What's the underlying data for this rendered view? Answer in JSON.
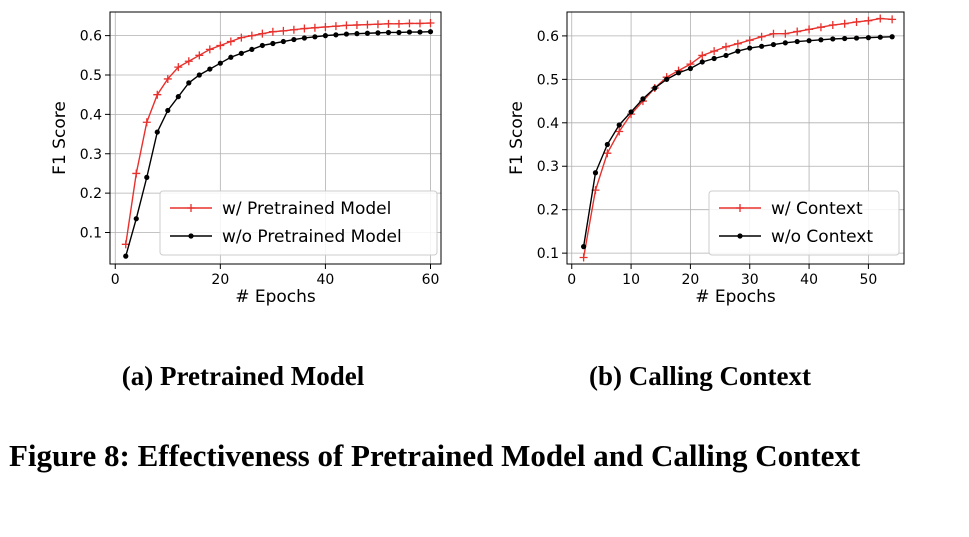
{
  "figure_caption": "Figure 8: Effectiveness of Pretrained Model and Calling Context",
  "colors": {
    "red": "#e8302c",
    "black": "#000000",
    "grid": "#b0b0b0"
  },
  "chart_data": [
    {
      "type": "line",
      "caption": "(a) Pretrained Model",
      "xlabel": "# Epochs",
      "ylabel": "F1 Score",
      "xlim": [
        -1,
        62
      ],
      "ylim": [
        0.02,
        0.66
      ],
      "xticks": [
        "0",
        "20",
        "40",
        "60"
      ],
      "xtick_values": [
        0,
        20,
        40,
        60
      ],
      "yticks": [
        "0.1",
        "0.2",
        "0.3",
        "0.4",
        "0.5",
        "0.6"
      ],
      "ytick_values": [
        0.1,
        0.2,
        0.3,
        0.4,
        0.5,
        0.6
      ],
      "grid": true,
      "legend": "center-right",
      "x": [
        2,
        4,
        6,
        8,
        10,
        12,
        14,
        16,
        18,
        20,
        22,
        24,
        26,
        28,
        30,
        32,
        34,
        36,
        38,
        40,
        42,
        44,
        46,
        48,
        50,
        52,
        54,
        56,
        58,
        60
      ],
      "series": [
        {
          "name": "w/ Pretrained Model",
          "color": "#e8302c",
          "marker": "plus",
          "values": [
            0.07,
            0.25,
            0.38,
            0.45,
            0.49,
            0.52,
            0.535,
            0.55,
            0.565,
            0.575,
            0.585,
            0.595,
            0.6,
            0.605,
            0.61,
            0.612,
            0.615,
            0.618,
            0.62,
            0.622,
            0.624,
            0.626,
            0.627,
            0.628,
            0.629,
            0.63,
            0.63,
            0.631,
            0.631,
            0.632
          ]
        },
        {
          "name": "w/o Pretrained Model",
          "color": "#000000",
          "marker": "dot",
          "values": [
            0.04,
            0.135,
            0.24,
            0.355,
            0.41,
            0.445,
            0.48,
            0.5,
            0.515,
            0.53,
            0.545,
            0.555,
            0.565,
            0.575,
            0.58,
            0.585,
            0.59,
            0.594,
            0.597,
            0.6,
            0.602,
            0.604,
            0.605,
            0.606,
            0.607,
            0.608,
            0.608,
            0.609,
            0.609,
            0.61
          ]
        }
      ]
    },
    {
      "type": "line",
      "caption": "(b) Calling Context",
      "xlabel": "# Epochs",
      "ylabel": "F1 Score",
      "xlim": [
        -0.8,
        56
      ],
      "ylim": [
        0.075,
        0.655
      ],
      "xticks": [
        "0",
        "10",
        "20",
        "30",
        "40",
        "50"
      ],
      "xtick_values": [
        0,
        10,
        20,
        30,
        40,
        50
      ],
      "yticks": [
        "0.1",
        "0.2",
        "0.3",
        "0.4",
        "0.5",
        "0.6"
      ],
      "ytick_values": [
        0.1,
        0.2,
        0.3,
        0.4,
        0.5,
        0.6
      ],
      "grid": true,
      "legend": "lower-right",
      "x": [
        2,
        4,
        6,
        8,
        10,
        12,
        14,
        16,
        18,
        20,
        22,
        24,
        26,
        28,
        30,
        32,
        34,
        36,
        38,
        40,
        42,
        44,
        46,
        48,
        50,
        52,
        54
      ],
      "series": [
        {
          "name": "w/ Context",
          "color": "#e8302c",
          "marker": "plus",
          "values": [
            0.09,
            0.245,
            0.33,
            0.38,
            0.42,
            0.45,
            0.48,
            0.505,
            0.52,
            0.535,
            0.555,
            0.565,
            0.575,
            0.582,
            0.59,
            0.598,
            0.605,
            0.605,
            0.61,
            0.615,
            0.62,
            0.625,
            0.628,
            0.632,
            0.635,
            0.64,
            0.638
          ]
        },
        {
          "name": "w/o Context",
          "color": "#000000",
          "marker": "dot",
          "values": [
            0.115,
            0.285,
            0.35,
            0.395,
            0.425,
            0.455,
            0.48,
            0.5,
            0.515,
            0.525,
            0.54,
            0.548,
            0.555,
            0.565,
            0.572,
            0.576,
            0.58,
            0.584,
            0.587,
            0.589,
            0.591,
            0.593,
            0.594,
            0.595,
            0.596,
            0.597,
            0.598
          ]
        }
      ]
    }
  ]
}
